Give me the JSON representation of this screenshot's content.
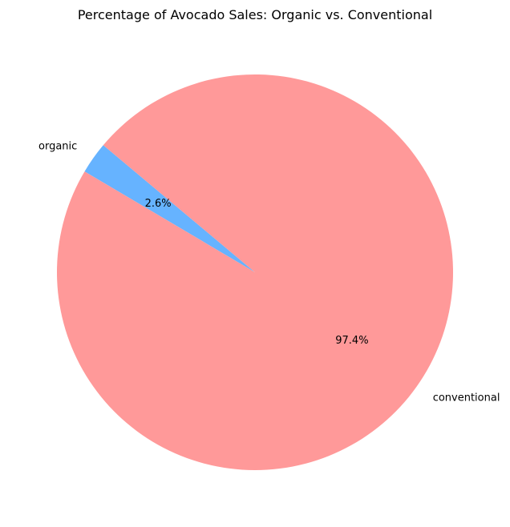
{
  "chart_data": {
    "type": "pie",
    "title": "Percentage of Avocado Sales: Organic vs. Conventional",
    "categories": [
      "organic",
      "conventional"
    ],
    "values": [
      2.6,
      97.4
    ],
    "value_labels": [
      "2.6%",
      "97.4%"
    ],
    "colors": [
      "#66b3ff",
      "#ff9999"
    ],
    "start_angle_deg": 140,
    "legend": "none"
  }
}
